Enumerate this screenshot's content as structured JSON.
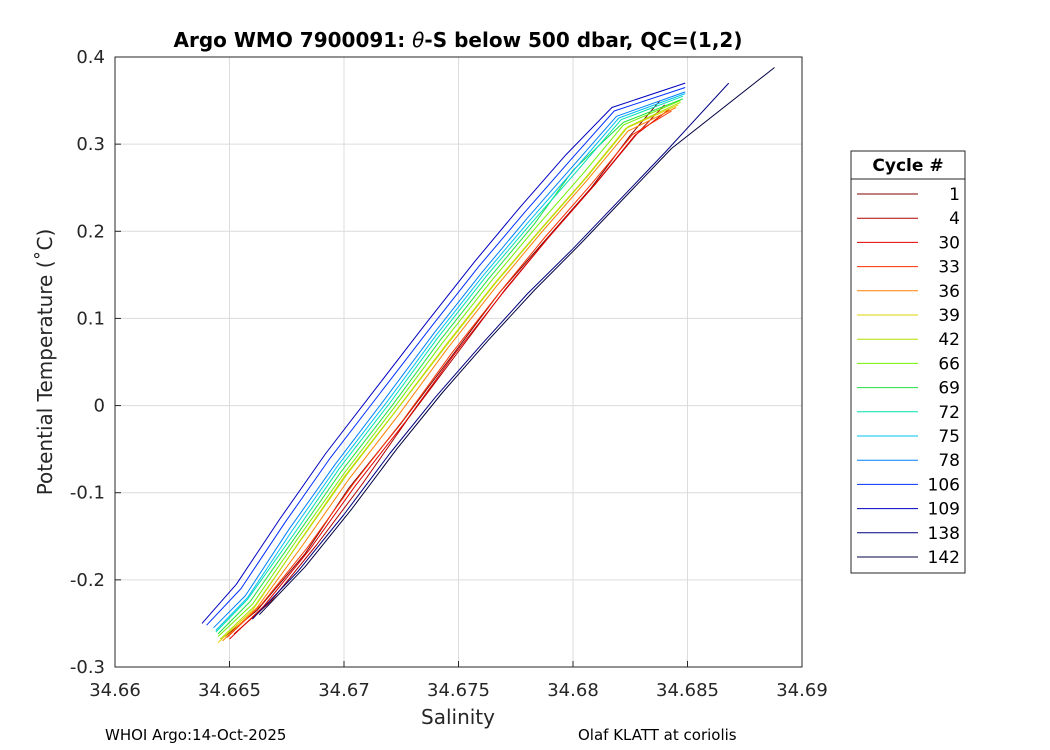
{
  "chart_data": {
    "type": "line",
    "title_parts": {
      "prefix": "Argo WMO 7900091: ",
      "theta": "θ",
      "suffix": "-S below 500 dbar,  QC=(1,2)"
    },
    "xlabel": "Salinity",
    "ylabel": "Potential Temperature (˚C)",
    "xlim": [
      34.66,
      34.69
    ],
    "ylim": [
      -0.3,
      0.4
    ],
    "xticks": [
      "34.66",
      "34.665",
      "34.67",
      "34.675",
      "34.68",
      "34.685",
      "34.69"
    ],
    "yticks": [
      "-0.3",
      "-0.2",
      "-0.1",
      "0",
      "0.1",
      "0.2",
      "0.3",
      "0.4"
    ],
    "grid": true,
    "legend": {
      "title": "Cycle #",
      "placement": "right, outside",
      "entries": [
        "1",
        "4",
        "30",
        "33",
        "36",
        "39",
        "42",
        "66",
        "69",
        "72",
        "75",
        "78",
        "106",
        "109",
        "138",
        "142"
      ]
    },
    "series": [
      {
        "name": "1",
        "color": "#800000",
        "x": [
          34.6648,
          34.6662,
          34.6683,
          34.6702,
          34.6725,
          34.6748,
          34.6768,
          34.6788,
          34.6808,
          34.6825,
          34.6838
        ],
        "y": [
          -0.265,
          -0.235,
          -0.17,
          -0.095,
          -0.02,
          0.06,
          0.13,
          0.19,
          0.25,
          0.31,
          0.35
        ]
      },
      {
        "name": "4",
        "color": "#b00000",
        "x": [
          34.6652,
          34.6668,
          34.6688,
          34.6708,
          34.6728,
          34.675,
          34.677,
          34.679,
          34.681,
          34.6828,
          34.684
        ],
        "y": [
          -0.262,
          -0.225,
          -0.16,
          -0.09,
          -0.015,
          0.062,
          0.132,
          0.195,
          0.255,
          0.312,
          0.345
        ]
      },
      {
        "name": "30",
        "color": "#e00000",
        "x": [
          34.665,
          34.6665,
          34.6685,
          34.6705,
          34.6727,
          34.6748,
          34.6769,
          34.6789,
          34.6809,
          34.6827,
          34.6842
        ],
        "y": [
          -0.268,
          -0.23,
          -0.165,
          -0.092,
          -0.018,
          0.058,
          0.128,
          0.192,
          0.252,
          0.31,
          0.34
        ]
      },
      {
        "name": "33",
        "color": "#ff3000",
        "x": [
          34.6649,
          34.6664,
          34.6684,
          34.6704,
          34.6726,
          34.6747,
          34.6768,
          34.6788,
          34.6808,
          34.6826,
          34.6843
        ],
        "y": [
          -0.266,
          -0.228,
          -0.163,
          -0.09,
          -0.016,
          0.06,
          0.13,
          0.194,
          0.254,
          0.311,
          0.338
        ]
      },
      {
        "name": "36",
        "color": "#ff8000",
        "x": [
          34.6647,
          34.6662,
          34.6682,
          34.6702,
          34.6724,
          34.6745,
          34.6766,
          34.6786,
          34.6806,
          34.6824,
          34.6845
        ],
        "y": [
          -0.27,
          -0.232,
          -0.16,
          -0.085,
          -0.01,
          0.065,
          0.135,
          0.198,
          0.258,
          0.315,
          0.342
        ]
      },
      {
        "name": "39",
        "color": "#e0d000",
        "x": [
          34.6645,
          34.666,
          34.668,
          34.67,
          34.6722,
          34.6744,
          34.6765,
          34.6785,
          34.6805,
          34.6823,
          34.6846
        ],
        "y": [
          -0.272,
          -0.235,
          -0.158,
          -0.082,
          -0.008,
          0.068,
          0.138,
          0.2,
          0.26,
          0.318,
          0.345
        ]
      },
      {
        "name": "42",
        "color": "#b0e000",
        "x": [
          34.6646,
          34.6661,
          34.6681,
          34.6701,
          34.6723,
          34.6745,
          34.6766,
          34.6786,
          34.6806,
          34.6824,
          34.6847
        ],
        "y": [
          -0.268,
          -0.23,
          -0.155,
          -0.08,
          -0.005,
          0.07,
          0.14,
          0.202,
          0.262,
          0.32,
          0.348
        ]
      },
      {
        "name": "66",
        "color": "#70f000",
        "x": [
          34.6645,
          34.666,
          34.668,
          34.67,
          34.6722,
          34.6743,
          34.6764,
          34.6784,
          34.6804,
          34.6822,
          34.6847
        ],
        "y": [
          -0.265,
          -0.228,
          -0.152,
          -0.078,
          -0.002,
          0.072,
          0.142,
          0.205,
          0.265,
          0.322,
          0.35
        ]
      },
      {
        "name": "69",
        "color": "#20e040",
        "x": [
          34.6645,
          34.6659,
          34.6679,
          34.6699,
          34.6721,
          34.6742,
          34.6763,
          34.6783,
          34.68,
          34.6822,
          34.6848
        ],
        "y": [
          -0.262,
          -0.225,
          -0.15,
          -0.075,
          0.0,
          0.075,
          0.145,
          0.208,
          0.27,
          0.325,
          0.352
        ]
      },
      {
        "name": "72",
        "color": "#00e0b0",
        "x": [
          34.6644,
          34.6658,
          34.6678,
          34.6698,
          34.672,
          34.6741,
          34.6762,
          34.6782,
          34.6802,
          34.6821,
          34.6848
        ],
        "y": [
          -0.26,
          -0.222,
          -0.148,
          -0.072,
          0.003,
          0.078,
          0.148,
          0.21,
          0.27,
          0.328,
          0.355
        ]
      },
      {
        "name": "75",
        "color": "#00c0f0",
        "x": [
          34.6644,
          34.6658,
          34.6677,
          34.6697,
          34.6719,
          34.674,
          34.6761,
          34.6781,
          34.6801,
          34.682,
          34.6849
        ],
        "y": [
          -0.258,
          -0.22,
          -0.145,
          -0.07,
          0.005,
          0.08,
          0.15,
          0.212,
          0.272,
          0.33,
          0.358
        ]
      },
      {
        "name": "78",
        "color": "#0080ff",
        "x": [
          34.6643,
          34.6657,
          34.6676,
          34.6696,
          34.6718,
          34.6739,
          34.676,
          34.678,
          34.68,
          34.6819,
          34.6849
        ],
        "y": [
          -0.255,
          -0.218,
          -0.142,
          -0.068,
          0.008,
          0.082,
          0.152,
          0.215,
          0.275,
          0.332,
          0.36
        ]
      },
      {
        "name": "106",
        "color": "#0030ff",
        "x": [
          34.664,
          34.6655,
          34.6674,
          34.6694,
          34.6716,
          34.6738,
          34.6759,
          34.6779,
          34.6799,
          34.6818,
          34.6849
        ],
        "y": [
          -0.252,
          -0.21,
          -0.135,
          -0.06,
          0.015,
          0.09,
          0.16,
          0.222,
          0.282,
          0.338,
          0.365
        ]
      },
      {
        "name": "109",
        "color": "#0000c0",
        "x": [
          34.6638,
          34.6653,
          34.6672,
          34.6692,
          34.6714,
          34.6736,
          34.6757,
          34.6777,
          34.6797,
          34.6817,
          34.6849
        ],
        "y": [
          -0.25,
          -0.205,
          -0.13,
          -0.055,
          0.02,
          0.095,
          0.165,
          0.228,
          0.288,
          0.342,
          0.37
        ]
      },
      {
        "name": "138",
        "color": "#000080",
        "x": [
          34.666,
          34.668,
          34.67,
          34.672,
          34.674,
          34.676,
          34.678,
          34.68,
          34.682,
          34.684,
          34.6868
        ],
        "y": [
          -0.245,
          -0.19,
          -0.125,
          -0.055,
          0.01,
          0.07,
          0.128,
          0.18,
          0.235,
          0.29,
          0.37
        ]
      },
      {
        "name": "142",
        "color": "#000040",
        "x": [
          34.6663,
          34.6683,
          34.6703,
          34.6723,
          34.6743,
          34.6763,
          34.6783,
          34.6803,
          34.6823,
          34.6843,
          34.6888
        ],
        "y": [
          -0.24,
          -0.185,
          -0.12,
          -0.05,
          0.015,
          0.075,
          0.132,
          0.185,
          0.24,
          0.295,
          0.388
        ]
      }
    ]
  },
  "footer": {
    "left": "WHOI Argo:14-Oct-2025",
    "right": "Olaf KLATT at coriolis"
  }
}
